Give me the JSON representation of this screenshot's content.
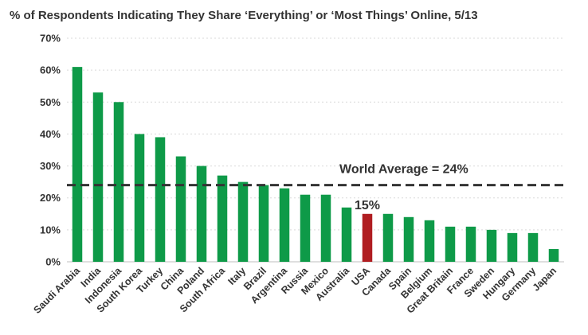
{
  "chart_data": {
    "type": "bar",
    "title": "% of Respondents Indicating They Share ‘Everything’ or ‘Most Things’ Online, 5/13",
    "xlabel": "",
    "ylabel": "",
    "ylim": [
      0,
      70
    ],
    "yticks": [
      "0%",
      "10%",
      "20%",
      "30%",
      "40%",
      "50%",
      "60%",
      "70%"
    ],
    "ytick_values": [
      0,
      10,
      20,
      30,
      40,
      50,
      60,
      70
    ],
    "grid": true,
    "categories": [
      "Saudi Arabia",
      "India",
      "Indonesia",
      "South Korea",
      "Turkey",
      "China",
      "Poland",
      "South Africa",
      "Italy",
      "Brazil",
      "Argentina",
      "Russia",
      "Mexico",
      "Australia",
      "USA",
      "Canada",
      "Spain",
      "Belgium",
      "Great Britain",
      "France",
      "Sweden",
      "Hungary",
      "Germany",
      "Japan"
    ],
    "values": [
      61,
      53,
      50,
      40,
      39,
      33,
      30,
      27,
      25,
      24,
      23,
      21,
      21,
      17,
      15,
      15,
      14,
      13,
      11,
      11,
      10,
      9,
      9,
      4
    ],
    "highlight_category": "USA",
    "highlight_label": "15%",
    "reference_line": {
      "value": 24,
      "label": "World Average = 24%"
    },
    "colors": {
      "bar": "#0e9a48",
      "highlight": "#b01d21",
      "reference": "#333333",
      "grid": "#d9d9d9"
    }
  }
}
